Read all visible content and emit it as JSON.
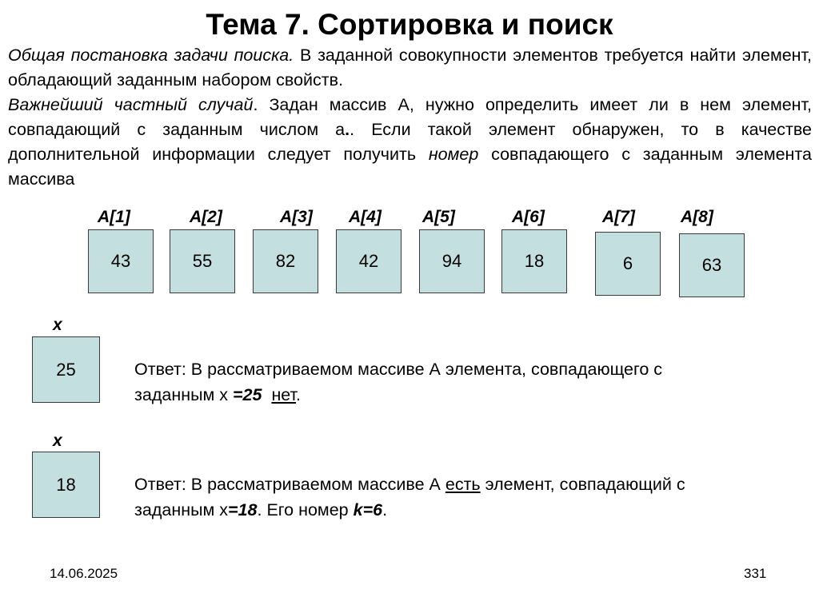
{
  "title": "Тема 7. Сортировка и поиск",
  "intro": {
    "p1_italic": "Общая постановка задачи поиска.",
    "p1_rest": " В заданной совокупности элементов требуется найти элемент, обладающий заданным набором свойств.",
    "p2_italic": "Важнейший частный случай",
    "p2_a": ". Задан массив А, нужно определить имеет ли в нем элемент, совпадающий с заданным числом а",
    "p2_b": ". Если такой элемент обнаружен, то в качестве дополнительной информации следует получить ",
    "p2_italic2": "номер",
    "p2_c": " совпадающего с заданным элемента массива"
  },
  "array": [
    {
      "label": "A[1]",
      "value": "43"
    },
    {
      "label": "A[2]",
      "value": "55"
    },
    {
      "label": "A[3]",
      "value": "82"
    },
    {
      "label": "A[4]",
      "value": "42"
    },
    {
      "label": "A[5]",
      "value": "94"
    },
    {
      "label": "A[6]",
      "value": "18"
    },
    {
      "label": "A[7]",
      "value": "6"
    },
    {
      "label": "A[8]",
      "value": "63"
    }
  ],
  "example1": {
    "x_label": "x",
    "x_value": "25",
    "line1": "Ответ: В рассматриваемом массиве А элемента, совпадающего с",
    "line2_a": "заданным  х ",
    "line2_eq": "=25",
    "line2_b": "  ",
    "line2_net": "нет",
    "line2_end": "."
  },
  "example2": {
    "x_label": "x",
    "x_value": "18",
    "line1_a": "Ответ: В рассматриваемом массиве А ",
    "line1_est": "есть",
    "line1_b": " элемент, совпадающий с",
    "line2_a": "заданным  х",
    "line2_eq": "=18",
    "line2_b": ". Его  номер ",
    "line2_k": "k=6",
    "line2_end": "."
  },
  "footer": {
    "date": "14.06.2025",
    "page": "331"
  }
}
